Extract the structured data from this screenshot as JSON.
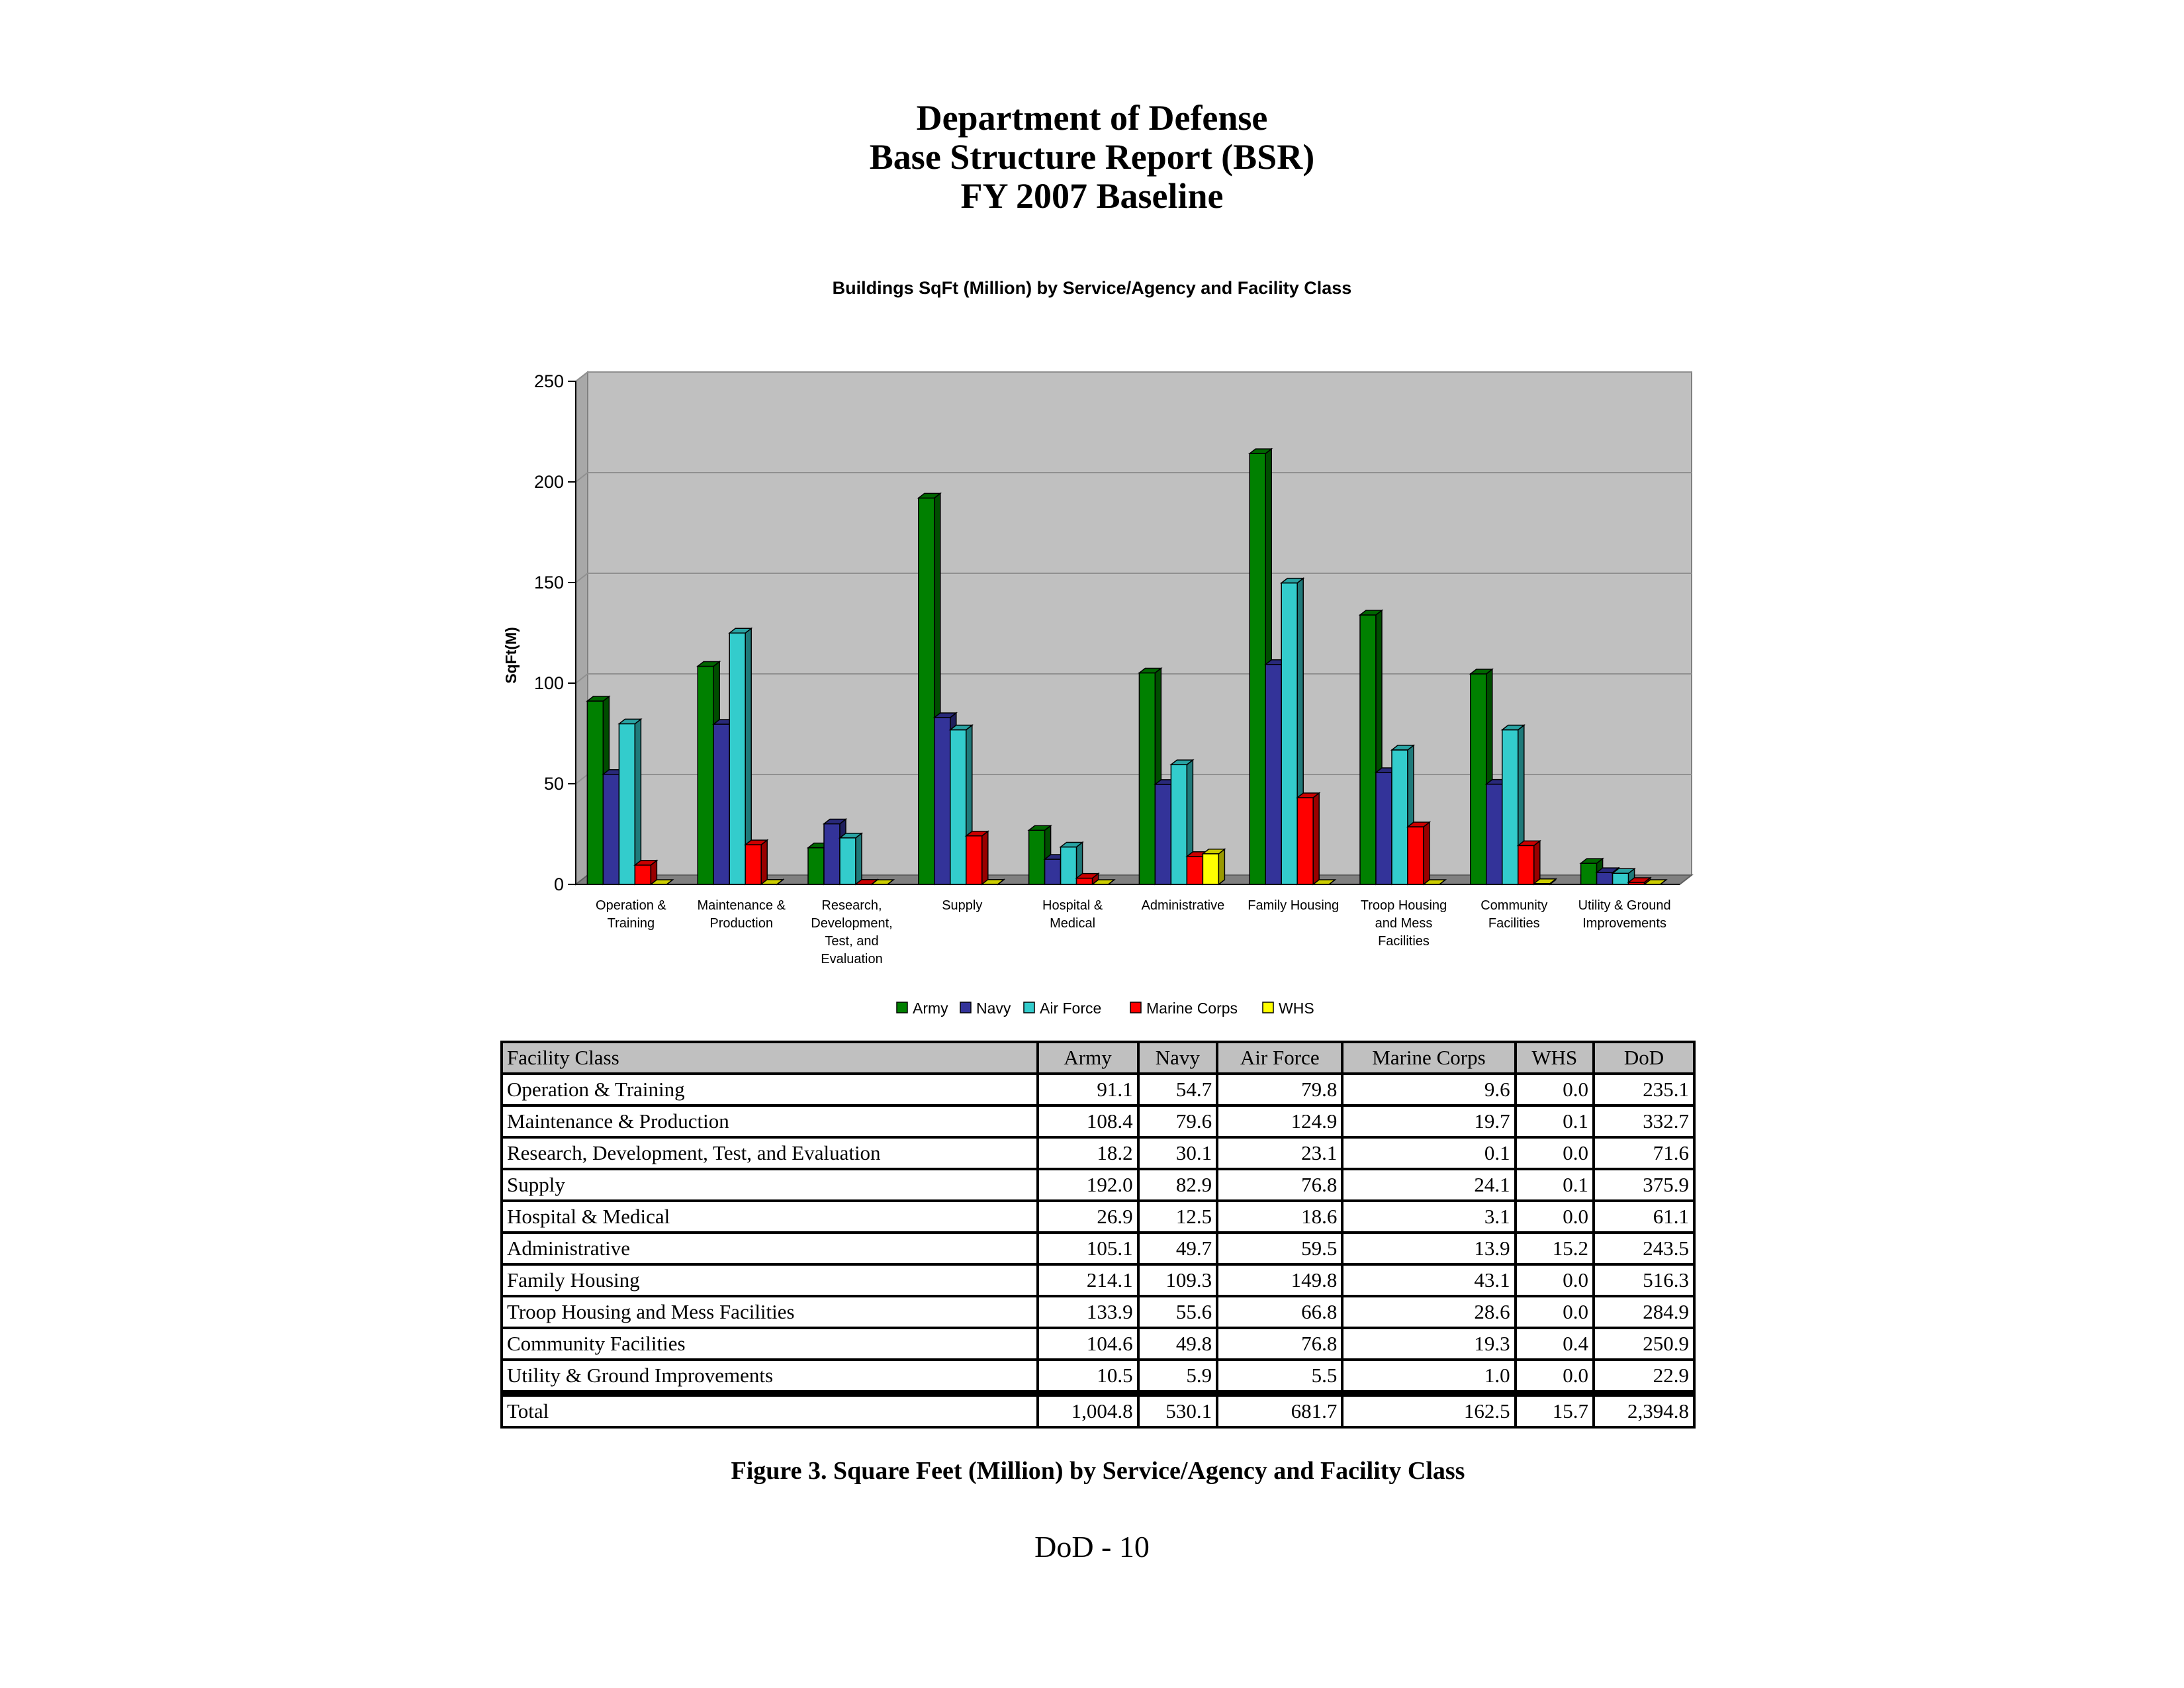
{
  "header": {
    "line1": "Department of Defense",
    "line2": "Base Structure Report (BSR)",
    "line3": "FY 2007 Baseline"
  },
  "chart_data": {
    "type": "bar",
    "title": "Buildings SqFt (Million) by Service/Agency and Facility Class",
    "ylabel": "SqFt(M)",
    "xlabel": "",
    "ylim": [
      0,
      250
    ],
    "yticks": [
      0,
      50,
      100,
      150,
      200,
      250
    ],
    "grid": true,
    "legend_position": "bottom",
    "categories": [
      [
        "Operation &",
        "Training"
      ],
      [
        "Maintenance &",
        "Production"
      ],
      [
        "Research,",
        "Development,",
        "Test, and",
        "Evaluation"
      ],
      [
        "Supply"
      ],
      [
        "Hospital &",
        "Medical"
      ],
      [
        "Administrative"
      ],
      [
        "Family Housing"
      ],
      [
        "Troop Housing",
        "and Mess",
        "Facilities"
      ],
      [
        "Community",
        "Facilities"
      ],
      [
        "Utility & Ground",
        "Improvements"
      ]
    ],
    "series": [
      {
        "name": "Army",
        "color": "#008000",
        "values": [
          91.1,
          108.4,
          18.2,
          192.0,
          26.9,
          105.1,
          214.1,
          133.9,
          104.6,
          10.5
        ]
      },
      {
        "name": "Navy",
        "color": "#333399",
        "values": [
          54.7,
          79.6,
          30.1,
          82.9,
          12.5,
          49.7,
          109.3,
          55.6,
          49.8,
          5.9
        ]
      },
      {
        "name": "Air Force",
        "color": "#33CCCC",
        "values": [
          79.8,
          124.9,
          23.1,
          76.8,
          18.6,
          59.5,
          149.8,
          66.8,
          76.8,
          5.5
        ]
      },
      {
        "name": "Marine Corps",
        "color": "#FF0000",
        "values": [
          9.6,
          19.7,
          0.1,
          24.1,
          3.1,
          13.9,
          43.1,
          28.6,
          19.3,
          1.0
        ]
      },
      {
        "name": "WHS",
        "color": "#FFFF00",
        "values": [
          0.0,
          0.1,
          0.0,
          0.1,
          0.0,
          15.2,
          0.0,
          0.0,
          0.4,
          0.0
        ]
      }
    ]
  },
  "table": {
    "headers": [
      "Facility Class",
      "Army",
      "Navy",
      "Air Force",
      "Marine Corps",
      "WHS",
      "DoD"
    ],
    "rows": [
      [
        "Operation & Training",
        "91.1",
        "54.7",
        "79.8",
        "9.6",
        "0.0",
        "235.1"
      ],
      [
        "Maintenance & Production",
        "108.4",
        "79.6",
        "124.9",
        "19.7",
        "0.1",
        "332.7"
      ],
      [
        "Research, Development, Test, and Evaluation",
        "18.2",
        "30.1",
        "23.1",
        "0.1",
        "0.0",
        "71.6"
      ],
      [
        "Supply",
        "192.0",
        "82.9",
        "76.8",
        "24.1",
        "0.1",
        "375.9"
      ],
      [
        "Hospital & Medical",
        "26.9",
        "12.5",
        "18.6",
        "3.1",
        "0.0",
        "61.1"
      ],
      [
        "Administrative",
        "105.1",
        "49.7",
        "59.5",
        "13.9",
        "15.2",
        "243.5"
      ],
      [
        "Family Housing",
        "214.1",
        "109.3",
        "149.8",
        "43.1",
        "0.0",
        "516.3"
      ],
      [
        "Troop Housing and Mess Facilities",
        "133.9",
        "55.6",
        "66.8",
        "28.6",
        "0.0",
        "284.9"
      ],
      [
        "Community Facilities",
        "104.6",
        "49.8",
        "76.8",
        "19.3",
        "0.4",
        "250.9"
      ],
      [
        "Utility & Ground Improvements",
        "10.5",
        "5.9",
        "5.5",
        "1.0",
        "0.0",
        "22.9"
      ]
    ],
    "total": [
      "Total",
      "1,004.8",
      "530.1",
      "681.7",
      "162.5",
      "15.7",
      "2,394.8"
    ]
  },
  "caption": "Figure 3.  Square Feet (Million) by Service/Agency and Facility Class",
  "page_number": "DoD - 10"
}
